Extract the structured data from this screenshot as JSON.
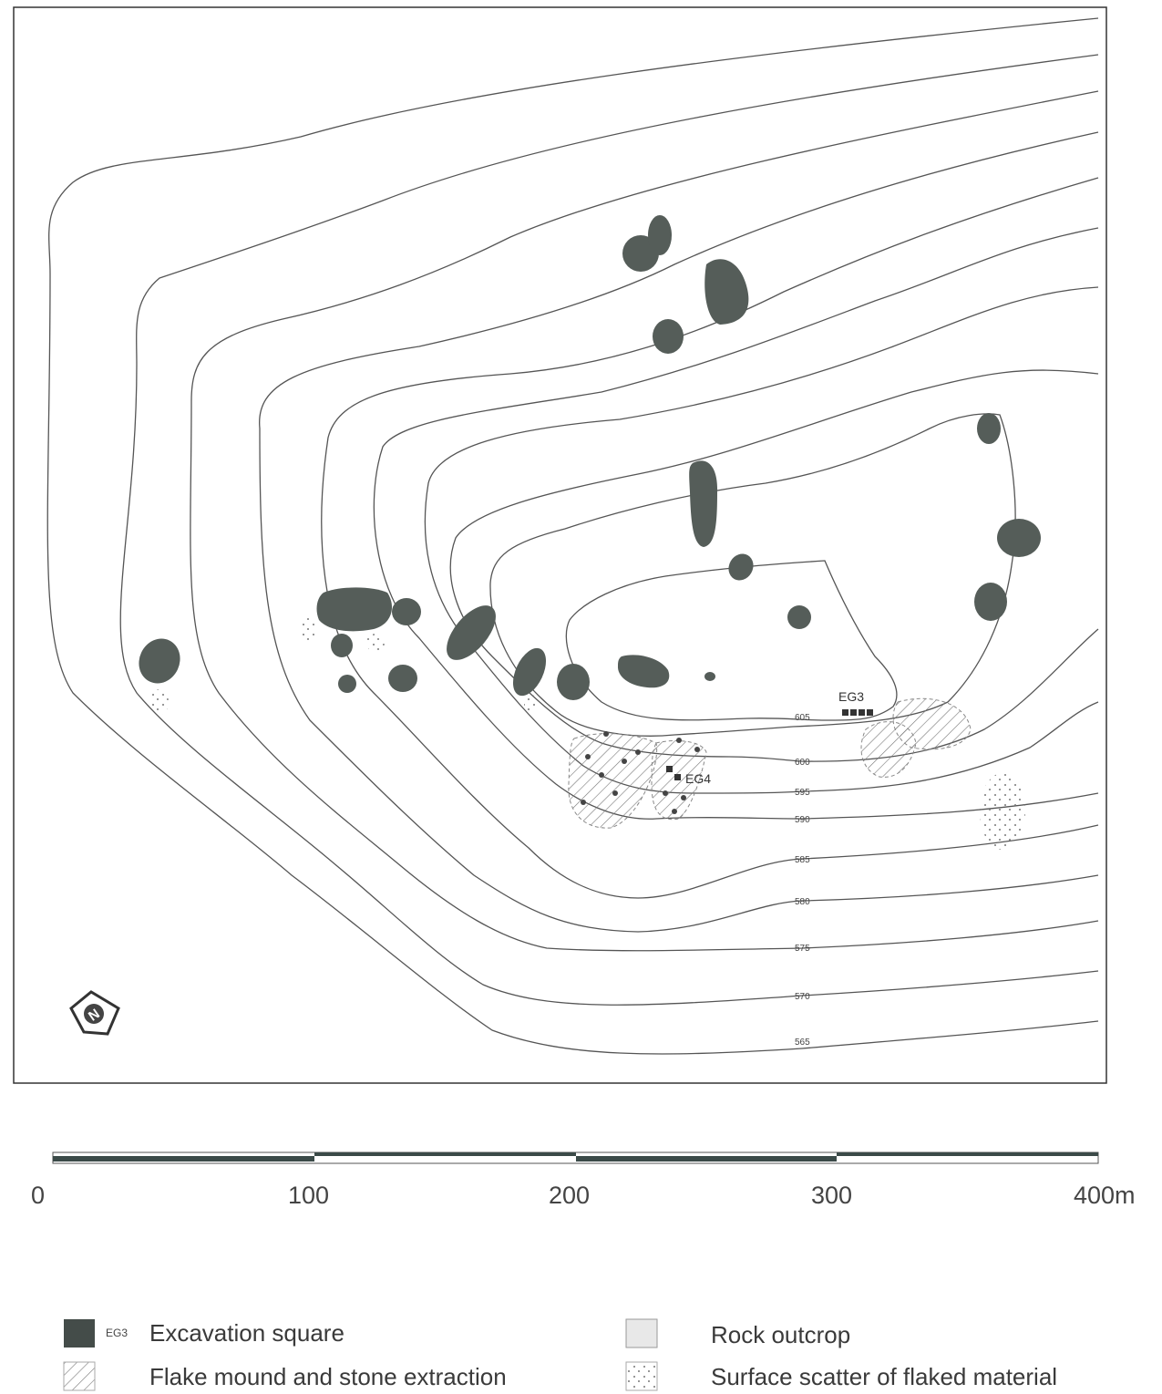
{
  "contours": [
    {
      "label": "605"
    },
    {
      "label": "600"
    },
    {
      "label": "595"
    },
    {
      "label": "590"
    },
    {
      "label": "585"
    },
    {
      "label": "580"
    },
    {
      "label": "575"
    },
    {
      "label": "570"
    },
    {
      "label": "565"
    }
  ],
  "sites": {
    "eg3": "EG3",
    "eg4": "EG4"
  },
  "north": {
    "letter": "N"
  },
  "scale": {
    "ticks": [
      "0",
      "100",
      "200",
      "300",
      "400m"
    ]
  },
  "legend": {
    "excavation_code": "EG3",
    "excavation": "Excavation square",
    "flake_mound": "Flake mound and stone extraction",
    "rock_outcrop": "Rock outcrop",
    "surface_scatter": "Surface scatter of flaked material"
  },
  "colors": {
    "outcrop": "#555d59",
    "contour": "#555555"
  }
}
